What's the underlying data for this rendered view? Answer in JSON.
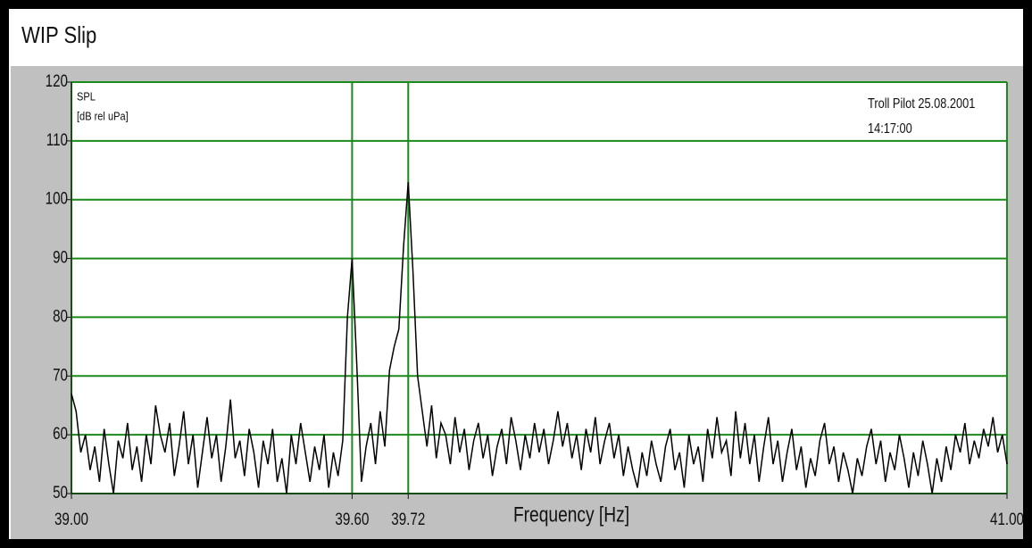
{
  "chart_data": {
    "type": "line",
    "title": "WIP Slip",
    "y_label": [
      "SPL",
      "[dB rel uPa]"
    ],
    "annotation": [
      "Troll Pilot 25.08.2001",
      "14:17:00"
    ],
    "x_label": "Frequency [Hz]",
    "x": [
      39,
      39.01,
      39.02,
      39.03,
      39.04,
      39.05,
      39.06,
      39.07,
      39.08,
      39.09,
      39.1,
      39.11,
      39.12,
      39.13,
      39.14,
      39.15,
      39.16,
      39.17,
      39.18,
      39.19,
      39.2,
      39.21,
      39.22,
      39.23,
      39.24,
      39.25,
      39.26,
      39.27,
      39.28,
      39.29,
      39.3,
      39.31,
      39.32,
      39.33,
      39.34,
      39.35,
      39.36,
      39.37,
      39.38,
      39.39,
      39.4,
      39.41,
      39.42,
      39.43,
      39.44,
      39.45,
      39.46,
      39.47,
      39.48,
      39.49,
      39.5,
      39.51,
      39.52,
      39.53,
      39.54,
      39.55,
      39.56,
      39.57,
      39.58,
      39.59,
      39.6,
      39.61,
      39.62,
      39.63,
      39.64,
      39.65,
      39.66,
      39.67,
      39.68,
      39.69,
      39.7,
      39.71,
      39.72,
      39.73,
      39.74,
      39.75,
      39.76,
      39.77,
      39.78,
      39.79,
      39.8,
      39.81,
      39.82,
      39.83,
      39.84,
      39.85,
      39.86,
      39.87,
      39.88,
      39.89,
      39.9,
      39.91,
      39.92,
      39.93,
      39.94,
      39.95,
      39.96,
      39.97,
      39.98,
      39.99,
      40,
      40.01,
      40.02,
      40.03,
      40.04,
      40.05,
      40.06,
      40.07,
      40.08,
      40.09,
      40.1,
      40.11,
      40.12,
      40.13,
      40.14,
      40.15,
      40.16,
      40.17,
      40.18,
      40.19,
      40.2,
      40.21,
      40.22,
      40.23,
      40.24,
      40.25,
      40.26,
      40.27,
      40.28,
      40.29,
      40.3,
      40.31,
      40.32,
      40.33,
      40.34,
      40.35,
      40.36,
      40.37,
      40.38,
      40.39,
      40.4,
      40.41,
      40.42,
      40.43,
      40.44,
      40.45,
      40.46,
      40.47,
      40.48,
      40.49,
      40.5,
      40.51,
      40.52,
      40.53,
      40.54,
      40.55,
      40.56,
      40.57,
      40.58,
      40.59,
      40.6,
      40.61,
      40.62,
      40.63,
      40.64,
      40.65,
      40.66,
      40.67,
      40.68,
      40.69,
      40.7,
      40.71,
      40.72,
      40.73,
      40.74,
      40.75,
      40.76,
      40.77,
      40.78,
      40.79,
      40.8,
      40.81,
      40.82,
      40.83,
      40.84,
      40.85,
      40.86,
      40.87,
      40.88,
      40.89,
      40.9,
      40.91,
      40.92,
      40.93,
      40.94,
      40.95,
      40.96,
      40.97,
      40.98,
      40.99,
      41
    ],
    "values": [
      67,
      64,
      57,
      60,
      54,
      58,
      52,
      61,
      55,
      50,
      59,
      56,
      62,
      54,
      58,
      52,
      60,
      55,
      65,
      60,
      57,
      62,
      53,
      58,
      64,
      55,
      60,
      51,
      57,
      63,
      56,
      60,
      52,
      58,
      66,
      56,
      59,
      53,
      61,
      57,
      51,
      59,
      55,
      61,
      52,
      56,
      50,
      60,
      55,
      62,
      57,
      52,
      58,
      54,
      60,
      51,
      57,
      53,
      59,
      80,
      90,
      72,
      52,
      58,
      62,
      55,
      64,
      58,
      71,
      75,
      78,
      92,
      103,
      88,
      70,
      64,
      58,
      65,
      56,
      62,
      60,
      55,
      63,
      57,
      61,
      54,
      59,
      62,
      56,
      60,
      53,
      58,
      61,
      55,
      63,
      59,
      54,
      60,
      56,
      62,
      57,
      61,
      55,
      59,
      64,
      58,
      62,
      56,
      60,
      54,
      61,
      57,
      63,
      55,
      59,
      62,
      56,
      60,
      53,
      58,
      54,
      51,
      57,
      53,
      59,
      55,
      52,
      58,
      61,
      54,
      57,
      51,
      60,
      55,
      58,
      52,
      61,
      56,
      63,
      57,
      59,
      53,
      64,
      56,
      62,
      55,
      60,
      52,
      58,
      63,
      55,
      59,
      52,
      57,
      61,
      54,
      58,
      51,
      56,
      53,
      59,
      62,
      55,
      58,
      52,
      57,
      54,
      50,
      56,
      53,
      58,
      61,
      55,
      59,
      52,
      57,
      54,
      60,
      56,
      51,
      57,
      53,
      59,
      55,
      50,
      56,
      52,
      58,
      54,
      60,
      57,
      62,
      55,
      59,
      56,
      61,
      58,
      63,
      57,
      60,
      55
    ],
    "color": "#000000",
    "grid": true,
    "grid_color": "#1a8a1a",
    "xlim": [
      39,
      41
    ],
    "xticks": [
      {
        "value": 39,
        "label": "39.00"
      },
      {
        "value": 39.6,
        "label": "39.60"
      },
      39.72,
      {
        "value": 41,
        "label": "41.00"
      }
    ],
    "ylim": [
      50,
      120
    ],
    "yticks": [
      50,
      60,
      70,
      80,
      90,
      100,
      110,
      120
    ]
  }
}
